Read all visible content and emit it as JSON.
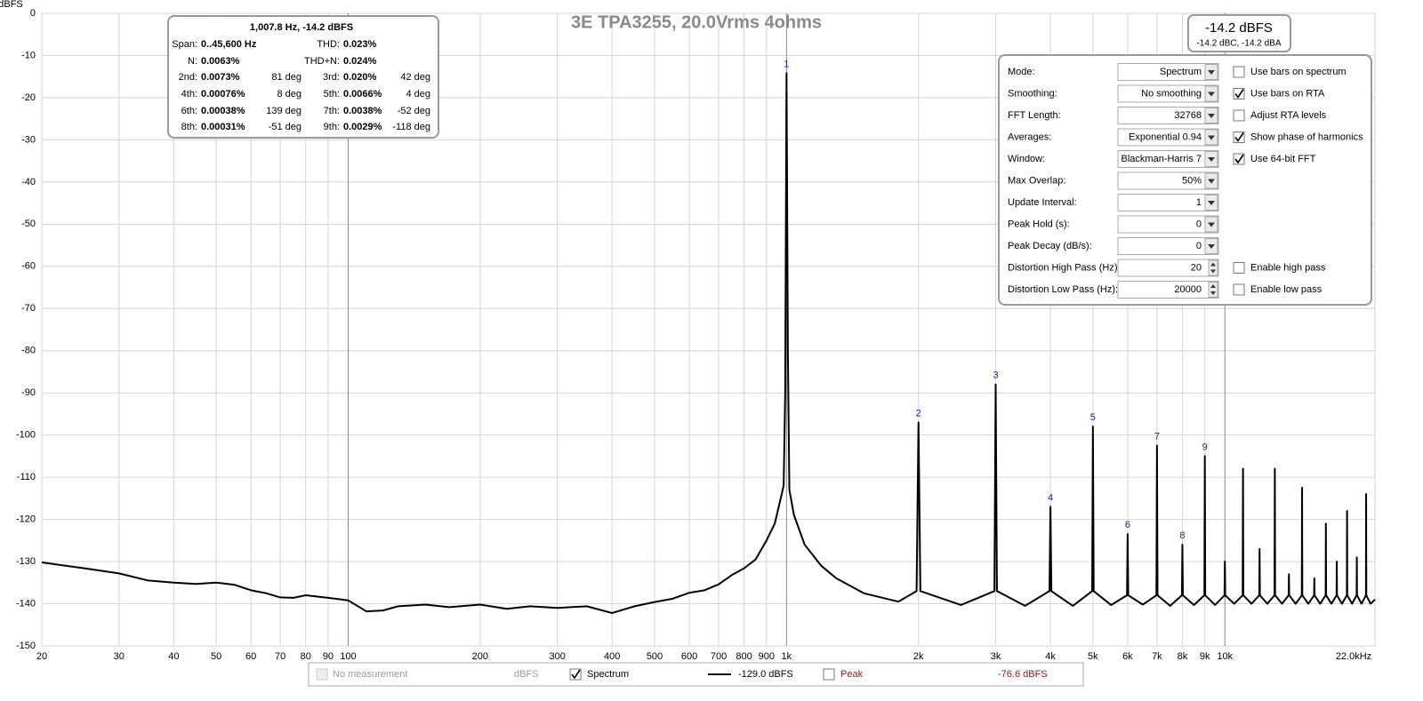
{
  "chart_data": {
    "type": "line",
    "title": "3E TPA3255, 20.0Vrms 4ohms",
    "y_label": "dBFS",
    "log_x": true,
    "grid": true,
    "xlim": [
      20,
      22000
    ],
    "ylim": [
      -150,
      0
    ],
    "xticks": [
      20,
      30,
      40,
      50,
      60,
      70,
      80,
      90,
      100,
      200,
      300,
      400,
      500,
      600,
      700,
      800,
      900,
      {
        "value": 1000,
        "label": "1k"
      },
      {
        "value": 2000,
        "label": "2k"
      },
      {
        "value": 3000,
        "label": "3k"
      },
      {
        "value": 4000,
        "label": "4k"
      },
      {
        "value": 5000,
        "label": "5k"
      },
      {
        "value": 6000,
        "label": "6k"
      },
      {
        "value": 7000,
        "label": "7k"
      },
      {
        "value": 8000,
        "label": "8k"
      },
      {
        "value": 9000,
        "label": "9k"
      },
      {
        "value": 10000,
        "label": "10k"
      },
      {
        "value": 22000,
        "label": "22.0kHz"
      }
    ],
    "yticks": [
      0,
      -10,
      -20,
      -30,
      -40,
      -50,
      -60,
      -70,
      -80,
      -90,
      -100,
      -110,
      -120,
      -130,
      -140,
      -150
    ],
    "series": [
      {
        "name": "Spectrum",
        "color": "#000000",
        "x": [
          20,
          25,
          30,
          35,
          40,
          45,
          50,
          55,
          60,
          65,
          70,
          75,
          80,
          90,
          100,
          110,
          120,
          130,
          150,
          170,
          200,
          230,
          260,
          300,
          350,
          400,
          450,
          500,
          550,
          600,
          650,
          700,
          750,
          800,
          850,
          900,
          940,
          970,
          985,
          993,
          1000,
          1007,
          1015,
          1040,
          1100,
          1200,
          1300,
          1500,
          1800,
          1980,
          2000,
          2020,
          2500,
          2980,
          3000,
          3020,
          3500,
          3980,
          4000,
          4020,
          4500,
          4980,
          5000,
          5020,
          5500,
          5980,
          6000,
          6020,
          6500,
          6980,
          7000,
          7020,
          7500,
          7980,
          8000,
          8020,
          8500,
          8980,
          9000,
          9020,
          9500,
          9980,
          10000,
          10020,
          10500,
          10980,
          11000,
          11020,
          11500,
          11980,
          12000,
          12020,
          12500,
          12980,
          13000,
          13020,
          13500,
          13980,
          14000,
          14020,
          14500,
          14980,
          15000,
          15020,
          15500,
          15980,
          16000,
          16020,
          16500,
          16980,
          17000,
          17020,
          17500,
          17980,
          18000,
          18020,
          18500,
          18980,
          19000,
          19020,
          19500,
          19980,
          20000,
          20020,
          20500,
          20980,
          21000,
          21020,
          21500,
          22000
        ],
        "values": [
          -130.2,
          -131.6,
          -132.8,
          -134.5,
          -135,
          -135.3,
          -135,
          -135.5,
          -136.8,
          -137.5,
          -138.5,
          -138.6,
          -138,
          -138.6,
          -139.2,
          -141.8,
          -141.6,
          -140.6,
          -140.2,
          -140.8,
          -140.2,
          -141.2,
          -140.6,
          -141,
          -140.6,
          -142.2,
          -140.6,
          -139.6,
          -138.8,
          -137.4,
          -136.8,
          -135.4,
          -133.2,
          -131.6,
          -129.5,
          -125,
          -121,
          -115,
          -112,
          -90,
          -14.2,
          -80,
          -113,
          -119,
          -126,
          -131,
          -134,
          -137.5,
          -139.5,
          -137,
          -97,
          -137,
          -140.3,
          -137,
          -88,
          -137,
          -140.5,
          -137,
          -117,
          -137,
          -140.5,
          -137,
          -98,
          -137,
          -140.3,
          -138,
          -123.5,
          -138,
          -140.2,
          -138,
          -102.5,
          -138,
          -140.5,
          -138,
          -126,
          -138,
          -140.3,
          -138,
          -105,
          -138,
          -140.3,
          -138,
          -130,
          -138,
          -140,
          -138,
          -108,
          -138,
          -140,
          -138,
          -127,
          -138,
          -140,
          -138,
          -108,
          -138,
          -140,
          -138,
          -133,
          -138,
          -140,
          -138,
          -112.5,
          -138,
          -140,
          -138,
          -134,
          -138,
          -140,
          -138,
          -121,
          -138,
          -140,
          -138,
          -130,
          -138,
          -140,
          -138,
          -118,
          -138,
          -140,
          -138,
          -129,
          -138,
          -140,
          -138,
          -114,
          -138,
          -140,
          -139
        ]
      }
    ],
    "annotations": [
      {
        "text": "1",
        "x": 1000
      },
      {
        "text": "2",
        "x": 2000
      },
      {
        "text": "3",
        "x": 3000
      },
      {
        "text": "4",
        "x": 4000
      },
      {
        "text": "5",
        "x": 5000
      },
      {
        "text": "6",
        "x": 6000
      },
      {
        "text": "7",
        "x": 7000
      },
      {
        "text": "8",
        "x": 8000
      },
      {
        "text": "9",
        "x": 9000
      }
    ]
  },
  "info_box": {
    "header": "1,007.8 Hz, -14.2 dBFS",
    "rows": [
      [
        {
          "label": "Span:",
          "value": "0..45,600 Hz"
        },
        {
          "label": "THD:",
          "value": "0.023%"
        }
      ],
      [
        {
          "label": "N:",
          "value": "0.0063%"
        },
        {
          "label": "THD+N:",
          "value": "0.024%"
        }
      ],
      [
        {
          "label": "2nd:",
          "value": "0.0073%",
          "phase": "81 deg"
        },
        {
          "label": "3rd:",
          "value": "0.020%",
          "phase": "42 deg"
        }
      ],
      [
        {
          "label": "4th:",
          "value": "0.00076%",
          "phase": "8 deg"
        },
        {
          "label": "5th:",
          "value": "0.0066%",
          "phase": "4 deg"
        }
      ],
      [
        {
          "label": "6th:",
          "value": "0.00038%",
          "phase": "139 deg"
        },
        {
          "label": "7th:",
          "value": "0.0038%",
          "phase": "-52 deg"
        }
      ],
      [
        {
          "label": "8th:",
          "value": "0.00031%",
          "phase": "-51 deg"
        },
        {
          "label": "9th:",
          "value": "0.0029%",
          "phase": "-118 deg"
        }
      ]
    ]
  },
  "level_box": {
    "main": "-14.2 dBFS",
    "sub": "-14.2 dBC, -14.2 dBA"
  },
  "settings": {
    "rows": [
      {
        "label": "Mode:",
        "value": "Spectrum",
        "control": "dropdown",
        "checkbox": {
          "label": "Use bars on spectrum",
          "checked": false
        }
      },
      {
        "label": "Smoothing:",
        "value": "No  smoothing",
        "control": "dropdown",
        "checkbox": {
          "label": "Use bars on RTA",
          "checked": true
        }
      },
      {
        "label": "FFT Length:",
        "value": "32768",
        "control": "dropdown",
        "checkbox": {
          "label": "Adjust RTA levels",
          "checked": false
        }
      },
      {
        "label": "Averages:",
        "value": "Exponential 0.94",
        "control": "dropdown",
        "checkbox": {
          "label": "Show phase of harmonics",
          "checked": true
        }
      },
      {
        "label": "Window:",
        "value": "Blackman-Harris 7",
        "control": "dropdown",
        "checkbox": {
          "label": "Use 64-bit FFT",
          "checked": true
        }
      },
      {
        "label": "Max Overlap:",
        "value": "50%",
        "control": "dropdown"
      },
      {
        "label": "Update Interval:",
        "value": "1",
        "control": "dropdown"
      },
      {
        "label": "Peak Hold (s):",
        "value": "0",
        "control": "dropdown"
      },
      {
        "label": "Peak Decay (dB/s):",
        "value": "0",
        "control": "dropdown"
      },
      {
        "label": "Distortion High Pass (Hz):",
        "value": "20",
        "control": "spinner",
        "checkbox": {
          "label": "Enable high pass",
          "checked": false
        }
      },
      {
        "label": "Distortion Low Pass (Hz):",
        "value": "20000",
        "control": "spinner",
        "checkbox": {
          "label": "Enable low pass",
          "checked": false
        }
      }
    ]
  },
  "legend_bar": {
    "no_measurement": "No measurement",
    "no_measurement_unit": "dBFS",
    "spectrum_level": "-129.0 dBFS",
    "peak_name": "Peak",
    "peak_level": "-76.6 dBFS"
  }
}
